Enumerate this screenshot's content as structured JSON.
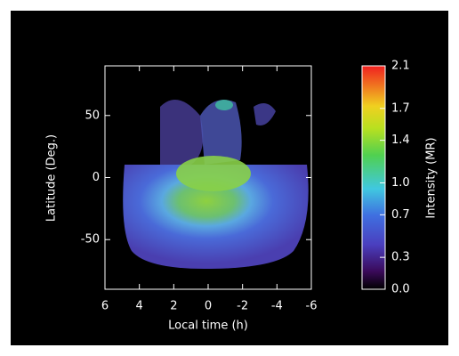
{
  "chart_data": {
    "type": "heatmap",
    "x_label": "Local time (h)",
    "y_label": "Latitude (Deg.)",
    "xlim": [
      6,
      -6
    ],
    "xticks": [
      6,
      4,
      2,
      0,
      -2,
      -4,
      -6
    ],
    "ylim": [
      -90,
      90
    ],
    "yticks": [
      -50,
      0,
      50
    ],
    "colorbar": {
      "label": "Intensity (MR)",
      "clim": [
        0,
        2.1
      ],
      "ticks": [
        {
          "value": 0,
          "label": "0.0"
        },
        0.3,
        0.7,
        {
          "value": 1,
          "label": "1.0"
        },
        1.4,
        1.7,
        2.1
      ]
    }
  }
}
